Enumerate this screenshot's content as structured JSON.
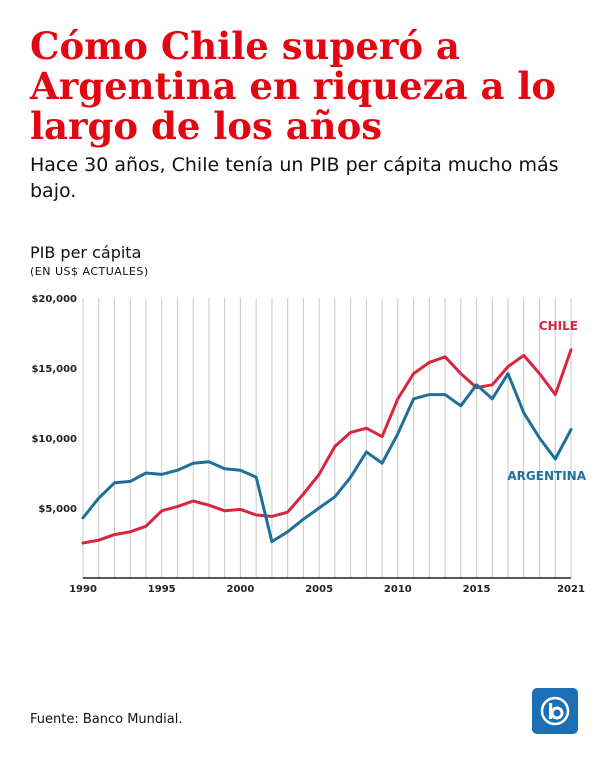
{
  "header": {
    "title": "Cómo Chile superó a Argentina en riqueza a lo largo de los años",
    "subtitle": "Hace 30 años, Chile tenía un PIB per cápita mucho más bajo."
  },
  "footer": {
    "source": "Fuente: Banco Mundial."
  },
  "colors": {
    "chile": "#d7263d",
    "argentina": "#1f6f9b",
    "grid": "#c8c8c8",
    "title": "#e30613",
    "logo": "#1a6fb5"
  },
  "logo_icon": "news-channel-logo-icon",
  "chart_data": {
    "type": "line",
    "ylabel": "PIB per cápita",
    "yunit": "(EN US$ ACTUALES)",
    "ylim": [
      0,
      20000
    ],
    "xlim": [
      1990,
      2021
    ],
    "ytick_values": [
      5000,
      10000,
      15000,
      20000
    ],
    "ytick_labels": [
      "$5,000",
      "$10,000",
      "$15,000",
      "$20,000"
    ],
    "xtick_values": [
      1990,
      1995,
      2000,
      2005,
      2010,
      2015,
      2021
    ],
    "xtick_labels": [
      "1990",
      "1995",
      "2000",
      "2005",
      "2010",
      "2015",
      "2021"
    ],
    "grid": "vertical",
    "x": [
      1990,
      1991,
      1992,
      1993,
      1994,
      1995,
      1996,
      1997,
      1998,
      1999,
      2000,
      2001,
      2002,
      2003,
      2004,
      2005,
      2006,
      2007,
      2008,
      2009,
      2010,
      2011,
      2012,
      2013,
      2014,
      2015,
      2016,
      2017,
      2018,
      2019,
      2020,
      2021
    ],
    "series": [
      {
        "name": "CHILE",
        "color_key": "chile",
        "values": [
          2500,
          2700,
          3100,
          3300,
          3700,
          4800,
          5100,
          5500,
          5200,
          4800,
          4900,
          4500,
          4400,
          4700,
          6000,
          7400,
          9400,
          10400,
          10700,
          10100,
          12800,
          14600,
          15400,
          15800,
          14600,
          13600,
          13800,
          15100,
          15900,
          14600,
          13100,
          16300
        ]
      },
      {
        "name": "ARGENTINA",
        "color_key": "argentina",
        "values": [
          4300,
          5700,
          6800,
          6900,
          7500,
          7400,
          7700,
          8200,
          8300,
          7800,
          7700,
          7200,
          2600,
          3300,
          4200,
          5000,
          5800,
          7200,
          9000,
          8200,
          10300,
          12800,
          13100,
          13100,
          12300,
          13800,
          12800,
          14600,
          11800,
          10000,
          8500,
          10600
        ]
      }
    ]
  }
}
